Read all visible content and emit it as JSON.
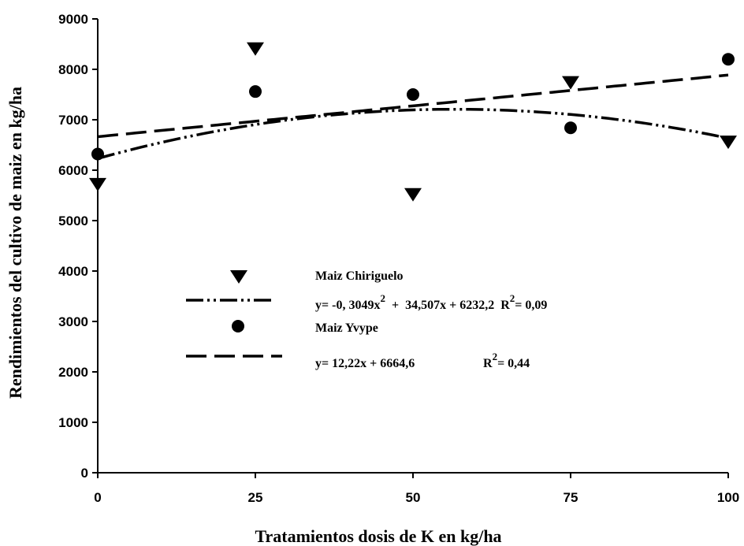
{
  "chart_data": {
    "type": "scatter",
    "xlabel": "Tratamientos dosis de K en kg/ha",
    "ylabel": "Rendimientos del cultivo de maiz en kg/ha",
    "xlim": [
      0,
      100
    ],
    "ylim": [
      0,
      9000
    ],
    "x_ticks": [
      0,
      25,
      50,
      75,
      100
    ],
    "x_tick_labels": [
      "0",
      "25",
      "50",
      "75",
      "100"
    ],
    "y_ticks": [
      0,
      1000,
      2000,
      3000,
      4000,
      5000,
      6000,
      7000,
      8000,
      9000
    ],
    "y_tick_labels": [
      "0",
      "1000",
      "2000",
      "3000",
      "4000",
      "5000",
      "6000",
      "7000",
      "8000",
      "9000"
    ],
    "grid": false,
    "legend_position": "center-left",
    "series": [
      {
        "name": "Maiz Chiriguelo",
        "marker": "triangle-down",
        "color": "#000000",
        "x": [
          0,
          25,
          50,
          75,
          100
        ],
        "y": [
          5720,
          8410,
          5520,
          7740,
          6560
        ]
      },
      {
        "name": "Maiz Yvype",
        "marker": "circle",
        "color": "#000000",
        "x": [
          0,
          25,
          50,
          75,
          100
        ],
        "y": [
          6320,
          7560,
          7500,
          6840,
          8200
        ]
      }
    ],
    "trendlines": [
      {
        "series": "Maiz Chiriguelo",
        "kind": "polynomial",
        "coefficients": [
          -0.3049,
          34.507,
          6232.2
        ],
        "style": "dash-dot-dot",
        "equation_main": "y= -0, 3049x",
        "equation_exp": "2",
        "equation_rest": "  +  34,507x + 6232,2  R",
        "r2_exp": "2",
        "r2_value": "= 0,09"
      },
      {
        "series": "Maiz Yvype",
        "kind": "linear",
        "coefficients": [
          12.22,
          6664.6
        ],
        "style": "long-dash",
        "equation_main": "y= 12,22x + 6664,6",
        "r2_label": "R",
        "r2_exp": "2",
        "r2_value": "= 0,44"
      }
    ]
  }
}
